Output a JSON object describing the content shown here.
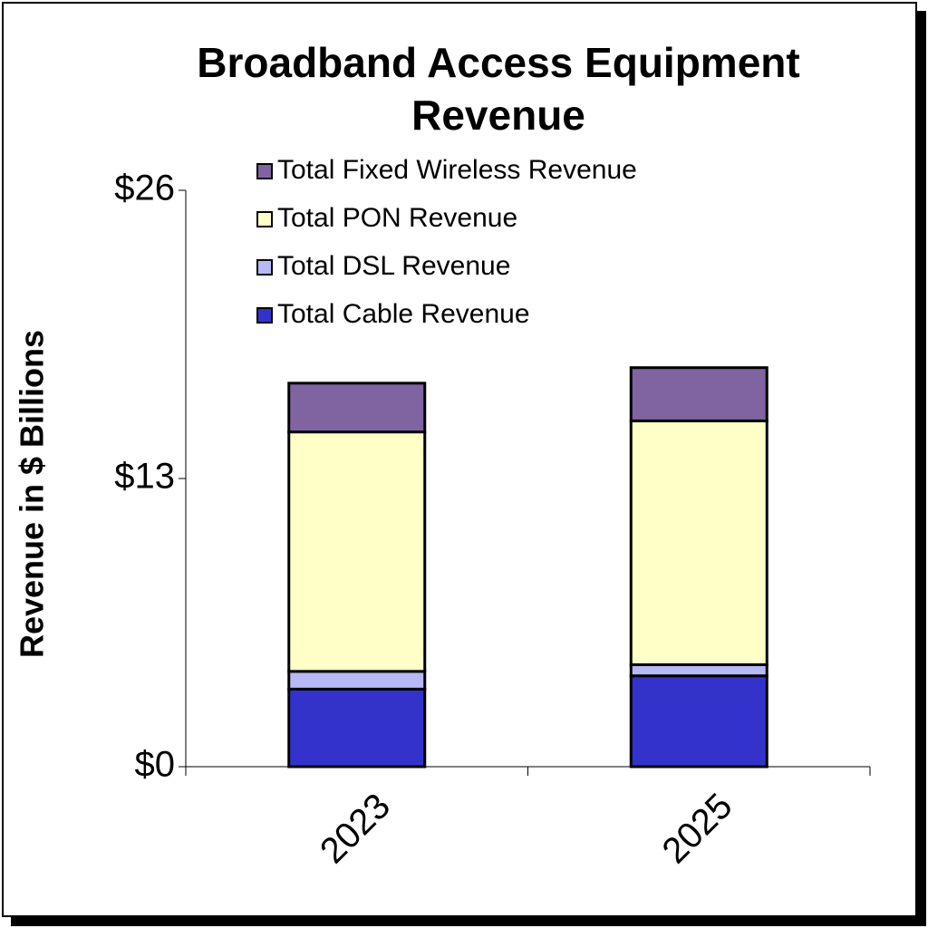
{
  "chart_data": {
    "type": "stacked_bar",
    "title": "Broadband Access Equipment Revenue",
    "y_label": "Revenue in $ Billions",
    "categories": [
      "2023",
      "2025"
    ],
    "series": [
      {
        "name": "Total Cable Revenue",
        "color": "#3333cc",
        "values": [
          3.5,
          4.1
        ]
      },
      {
        "name": "Total DSL Revenue",
        "color": "#b8b8f5",
        "values": [
          0.8,
          0.5
        ]
      },
      {
        "name": "Total PON Revenue",
        "color": "#ffffc8",
        "values": [
          10.8,
          11.0
        ]
      },
      {
        "name": "Total Fixed Wireless Revenue",
        "color": "#8064a2",
        "values": [
          2.2,
          2.4
        ]
      }
    ],
    "ylim": [
      0,
      26
    ],
    "yticks": [
      {
        "value": 0,
        "label": "$0"
      },
      {
        "value": 13,
        "label": "$13"
      },
      {
        "value": 26,
        "label": "$26"
      }
    ]
  }
}
